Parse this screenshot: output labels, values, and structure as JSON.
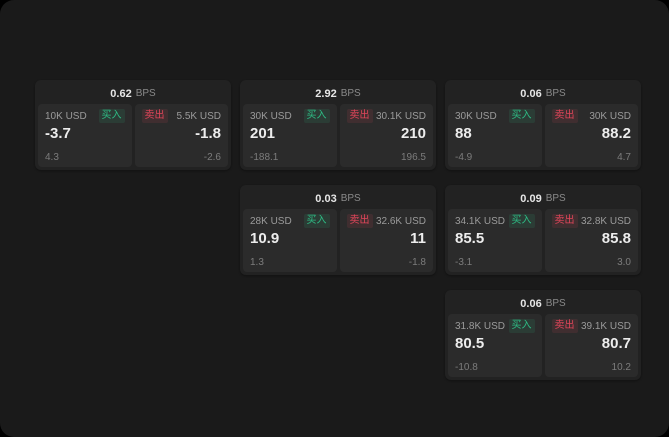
{
  "colors": {
    "buy": "#2ebd85",
    "sell": "#e0465a"
  },
  "cards": [
    {
      "bps": "0.62",
      "bps_unit": "BPS",
      "buy": {
        "size": "10K USD",
        "side": "买入",
        "price": "-3.7",
        "change": "4.3"
      },
      "sell": {
        "side": "卖出",
        "size": "5.5K USD",
        "price": "-1.8",
        "change": "-2.6"
      }
    },
    {
      "bps": "2.92",
      "bps_unit": "BPS",
      "buy": {
        "size": "30K USD",
        "side": "买入",
        "price": "201",
        "change": "-188.1"
      },
      "sell": {
        "side": "卖出",
        "size": "30.1K USD",
        "price": "210",
        "change": "196.5"
      }
    },
    {
      "bps": "0.06",
      "bps_unit": "BPS",
      "buy": {
        "size": "30K USD",
        "side": "买入",
        "price": "88",
        "change": "-4.9"
      },
      "sell": {
        "side": "卖出",
        "size": "30K USD",
        "price": "88.2",
        "change": "4.7"
      }
    },
    {
      "bps": "0.03",
      "bps_unit": "BPS",
      "buy": {
        "size": "28K USD",
        "side": "买入",
        "price": "10.9",
        "change": "1.3"
      },
      "sell": {
        "side": "卖出",
        "size": "32.6K USD",
        "price": "11",
        "change": "-1.8"
      }
    },
    {
      "bps": "0.09",
      "bps_unit": "BPS",
      "buy": {
        "size": "34.1K USD",
        "side": "买入",
        "price": "85.5",
        "change": "-3.1"
      },
      "sell": {
        "side": "卖出",
        "size": "32.8K USD",
        "price": "85.8",
        "change": "3.0"
      }
    },
    {
      "bps": "0.06",
      "bps_unit": "BPS",
      "buy": {
        "size": "31.8K USD",
        "side": "买入",
        "price": "80.5",
        "change": "-10.8"
      },
      "sell": {
        "side": "卖出",
        "size": "39.1K USD",
        "price": "80.7",
        "change": "10.2"
      }
    }
  ]
}
